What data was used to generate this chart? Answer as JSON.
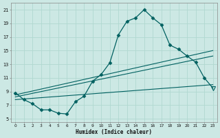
{
  "xlabel": "Humidex (Indice chaleur)",
  "xlim": [
    -0.5,
    23.5
  ],
  "ylim": [
    4.5,
    22
  ],
  "yticks": [
    5,
    7,
    9,
    11,
    13,
    15,
    17,
    19,
    21
  ],
  "xticks": [
    0,
    1,
    2,
    3,
    4,
    5,
    6,
    7,
    8,
    9,
    10,
    11,
    12,
    13,
    14,
    15,
    16,
    17,
    18,
    19,
    20,
    21,
    22,
    23
  ],
  "bg_color": "#cce8e4",
  "grid_color": "#b0d8d0",
  "line_color": "#006060",
  "line1_x": [
    0,
    1,
    2,
    3,
    4,
    5,
    6,
    7,
    8,
    9,
    10,
    11,
    12,
    13,
    14,
    15,
    16,
    17,
    18,
    19,
    20,
    21,
    22,
    23
  ],
  "line1_y": [
    8.8,
    7.8,
    7.2,
    6.3,
    6.3,
    5.8,
    5.7,
    7.5,
    8.3,
    10.5,
    11.5,
    13.2,
    17.3,
    19.3,
    19.8,
    21.0,
    19.8,
    18.8,
    15.8,
    15.2,
    14.2,
    13.3,
    11.0,
    9.5
  ],
  "line2_x": [
    0,
    23
  ],
  "line2_y": [
    8.5,
    15.0
  ],
  "line3_x": [
    0,
    23
  ],
  "line3_y": [
    8.2,
    14.2
  ],
  "line4_x": [
    0,
    23
  ],
  "line4_y": [
    7.8,
    10.0
  ],
  "last_marker_open": true,
  "markersize": 2.5
}
